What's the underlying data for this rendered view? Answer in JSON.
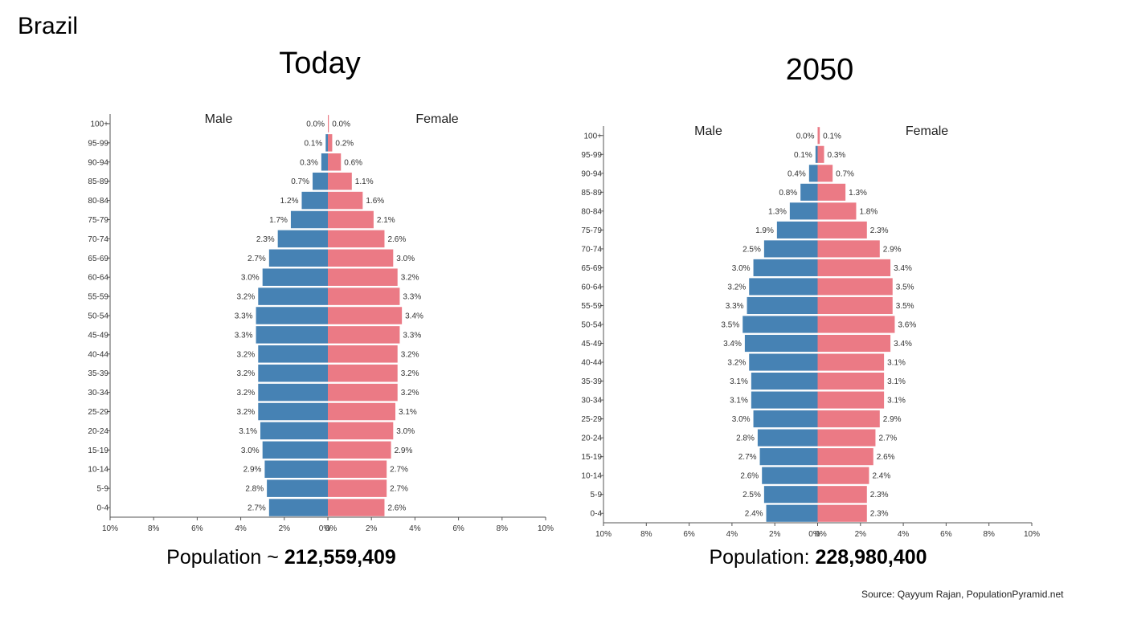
{
  "slide_title": "Brazil",
  "source": "Source: Qayyum Rajan, PopulationPyramid.net",
  "colors": {
    "male": "#4682b4",
    "female": "#eb7a85",
    "axis": "#555555"
  },
  "chart_data": [
    {
      "type": "bar",
      "orientation": "horizontal-pyramid",
      "title": "Today",
      "population_prefix": "Population ~ ",
      "population_value": "212,559,409",
      "left_label": "Male",
      "right_label": "Female",
      "categories": [
        "100+",
        "95-99",
        "90-94",
        "85-89",
        "80-84",
        "75-79",
        "70-74",
        "65-69",
        "60-64",
        "55-59",
        "50-54",
        "45-49",
        "40-44",
        "35-39",
        "30-34",
        "25-29",
        "20-24",
        "15-19",
        "10-14",
        "5-9",
        "0-4"
      ],
      "series": [
        {
          "name": "Male",
          "values": [
            0.0,
            0.1,
            0.3,
            0.7,
            1.2,
            1.7,
            2.3,
            2.7,
            3.0,
            3.2,
            3.3,
            3.3,
            3.2,
            3.2,
            3.2,
            3.2,
            3.1,
            3.0,
            2.9,
            2.8,
            2.7
          ],
          "labels": [
            "0.0%",
            "0.1%",
            "0.3%",
            "0.7%",
            "1.2%",
            "1.7%",
            "2.3%",
            "2.7%",
            "3.0%",
            "3.2%",
            "3.3%",
            "3.3%",
            "3.2%",
            "3.2%",
            "3.2%",
            "3.2%",
            "3.1%",
            "3.0%",
            "2.9%",
            "2.8%",
            "2.7%"
          ]
        },
        {
          "name": "Female",
          "values": [
            0.0,
            0.2,
            0.6,
            1.1,
            1.6,
            2.1,
            2.6,
            3.0,
            3.2,
            3.3,
            3.4,
            3.3,
            3.2,
            3.2,
            3.2,
            3.1,
            3.0,
            2.9,
            2.7,
            2.7,
            2.6
          ],
          "labels": [
            "0.0%",
            "0.2%",
            "0.6%",
            "1.1%",
            "1.6%",
            "2.1%",
            "2.6%",
            "3.0%",
            "3.2%",
            "3.3%",
            "3.4%",
            "3.3%",
            "3.2%",
            "3.2%",
            "3.2%",
            "3.1%",
            "3.0%",
            "2.9%",
            "2.7%",
            "2.7%",
            "2.6%"
          ]
        }
      ],
      "xlim": [
        -10,
        10
      ],
      "x_ticks": [
        "10%",
        "8%",
        "6%",
        "4%",
        "2%",
        "0%",
        "0%",
        "2%",
        "4%",
        "6%",
        "8%",
        "10%"
      ],
      "grid": false
    },
    {
      "type": "bar",
      "orientation": "horizontal-pyramid",
      "title": "2050",
      "population_prefix": "Population: ",
      "population_value": "228,980,400",
      "left_label": "Male",
      "right_label": "Female",
      "categories": [
        "100+",
        "95-99",
        "90-94",
        "85-89",
        "80-84",
        "75-79",
        "70-74",
        "65-69",
        "60-64",
        "55-59",
        "50-54",
        "45-49",
        "40-44",
        "35-39",
        "30-34",
        "25-29",
        "20-24",
        "15-19",
        "10-14",
        "5-9",
        "0-4"
      ],
      "series": [
        {
          "name": "Male",
          "values": [
            0.0,
            0.1,
            0.4,
            0.8,
            1.3,
            1.9,
            2.5,
            3.0,
            3.2,
            3.3,
            3.5,
            3.4,
            3.2,
            3.1,
            3.1,
            3.0,
            2.8,
            2.7,
            2.6,
            2.5,
            2.4
          ],
          "labels": [
            "0.0%",
            "0.1%",
            "0.4%",
            "0.8%",
            "1.3%",
            "1.9%",
            "2.5%",
            "3.0%",
            "3.2%",
            "3.3%",
            "3.5%",
            "3.4%",
            "3.2%",
            "3.1%",
            "3.1%",
            "3.0%",
            "2.8%",
            "2.7%",
            "2.6%",
            "2.5%",
            "2.4%"
          ]
        },
        {
          "name": "Female",
          "values": [
            0.1,
            0.3,
            0.7,
            1.3,
            1.8,
            2.3,
            2.9,
            3.4,
            3.5,
            3.5,
            3.6,
            3.4,
            3.1,
            3.1,
            3.1,
            2.9,
            2.7,
            2.6,
            2.4,
            2.3,
            2.3
          ],
          "labels": [
            "0.1%",
            "0.3%",
            "0.7%",
            "1.3%",
            "1.8%",
            "2.3%",
            "2.9%",
            "3.4%",
            "3.5%",
            "3.5%",
            "3.6%",
            "3.4%",
            "3.1%",
            "3.1%",
            "3.1%",
            "2.9%",
            "2.7%",
            "2.6%",
            "2.4%",
            "2.3%",
            "2.3%"
          ]
        }
      ],
      "xlim": [
        -10,
        10
      ],
      "x_ticks": [
        "10%",
        "8%",
        "6%",
        "4%",
        "2%",
        "0%",
        "0%",
        "2%",
        "4%",
        "6%",
        "8%",
        "10%"
      ],
      "grid": false
    }
  ]
}
